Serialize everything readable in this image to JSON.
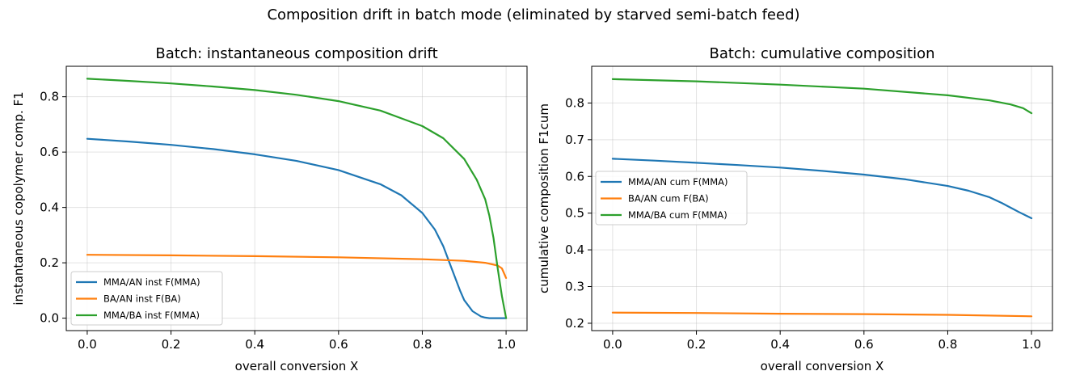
{
  "figure": {
    "suptitle": "Composition drift in batch mode (eliminated by starved semi-batch feed)"
  },
  "chart_data": [
    {
      "type": "line",
      "title": "Batch: instantaneous composition drift",
      "xlabel": "overall conversion X",
      "ylabel": "instantaneous copolymer comp. F1",
      "xlim": [
        -0.05,
        1.05
      ],
      "ylim": [
        -0.045,
        0.91
      ],
      "xticks": [
        0.0,
        0.2,
        0.4,
        0.6,
        0.8,
        1.0
      ],
      "xtick_labels": [
        "0.0",
        "0.2",
        "0.4",
        "0.6",
        "0.8",
        "1.0"
      ],
      "yticks": [
        0.0,
        0.2,
        0.4,
        0.6,
        0.8
      ],
      "ytick_labels": [
        "0.0",
        "0.2",
        "0.4",
        "0.6",
        "0.8"
      ],
      "grid": true,
      "legend_position": "lower-left",
      "series": [
        {
          "name": "MMA/AN inst F(MMA)",
          "color": "#1f77b4",
          "x": [
            0.0,
            0.1,
            0.2,
            0.3,
            0.4,
            0.5,
            0.6,
            0.7,
            0.75,
            0.8,
            0.83,
            0.85,
            0.87,
            0.89,
            0.9,
            0.92,
            0.94,
            0.95,
            0.96,
            1.0
          ],
          "y": [
            0.648,
            0.638,
            0.626,
            0.611,
            0.592,
            0.568,
            0.535,
            0.484,
            0.444,
            0.38,
            0.32,
            0.26,
            0.18,
            0.1,
            0.065,
            0.025,
            0.006,
            0.002,
            0.0,
            0.0
          ]
        },
        {
          "name": "BA/AN inst F(BA)",
          "color": "#ff7f0e",
          "x": [
            0.0,
            0.2,
            0.4,
            0.6,
            0.8,
            0.9,
            0.95,
            0.98,
            0.99,
            1.0
          ],
          "y": [
            0.229,
            0.227,
            0.224,
            0.22,
            0.213,
            0.207,
            0.2,
            0.19,
            0.18,
            0.145
          ]
        },
        {
          "name": "MMA/BA inst F(MMA)",
          "color": "#2ca02c",
          "x": [
            0.0,
            0.1,
            0.2,
            0.3,
            0.4,
            0.5,
            0.6,
            0.7,
            0.8,
            0.85,
            0.9,
            0.93,
            0.95,
            0.96,
            0.97,
            0.98,
            0.99,
            1.0
          ],
          "y": [
            0.865,
            0.857,
            0.848,
            0.837,
            0.824,
            0.807,
            0.784,
            0.75,
            0.694,
            0.65,
            0.575,
            0.5,
            0.43,
            0.37,
            0.29,
            0.18,
            0.08,
            0.0
          ]
        }
      ]
    },
    {
      "type": "line",
      "title": "Batch: cumulative composition",
      "xlabel": "overall conversion X",
      "ylabel": "cumulative composition F1cum",
      "xlim": [
        -0.05,
        1.05
      ],
      "ylim": [
        0.18,
        0.9
      ],
      "xticks": [
        0.0,
        0.2,
        0.4,
        0.6,
        0.8,
        1.0
      ],
      "xtick_labels": [
        "0.0",
        "0.2",
        "0.4",
        "0.6",
        "0.8",
        "1.0"
      ],
      "yticks": [
        0.2,
        0.3,
        0.4,
        0.5,
        0.6,
        0.7,
        0.8
      ],
      "ytick_labels": [
        "0.2",
        "0.3",
        "0.4",
        "0.5",
        "0.6",
        "0.7",
        "0.8"
      ],
      "grid": true,
      "legend_position": "center-left",
      "series": [
        {
          "name": "MMA/AN cum F(MMA)",
          "color": "#1f77b4",
          "x": [
            0.0,
            0.1,
            0.2,
            0.3,
            0.4,
            0.5,
            0.6,
            0.7,
            0.8,
            0.85,
            0.9,
            0.93,
            0.95,
            0.97,
            1.0
          ],
          "y": [
            0.648,
            0.643,
            0.637,
            0.631,
            0.624,
            0.615,
            0.605,
            0.592,
            0.574,
            0.561,
            0.543,
            0.527,
            0.515,
            0.503,
            0.486
          ]
        },
        {
          "name": "BA/AN cum F(BA)",
          "color": "#ff7f0e",
          "x": [
            0.0,
            0.2,
            0.4,
            0.6,
            0.8,
            1.0
          ],
          "y": [
            0.229,
            0.228,
            0.226,
            0.225,
            0.223,
            0.219
          ]
        },
        {
          "name": "MMA/BA cum F(MMA)",
          "color": "#2ca02c",
          "x": [
            0.0,
            0.2,
            0.4,
            0.6,
            0.8,
            0.9,
            0.95,
            0.98,
            1.0
          ],
          "y": [
            0.865,
            0.859,
            0.85,
            0.839,
            0.821,
            0.807,
            0.796,
            0.786,
            0.772
          ]
        }
      ]
    }
  ]
}
